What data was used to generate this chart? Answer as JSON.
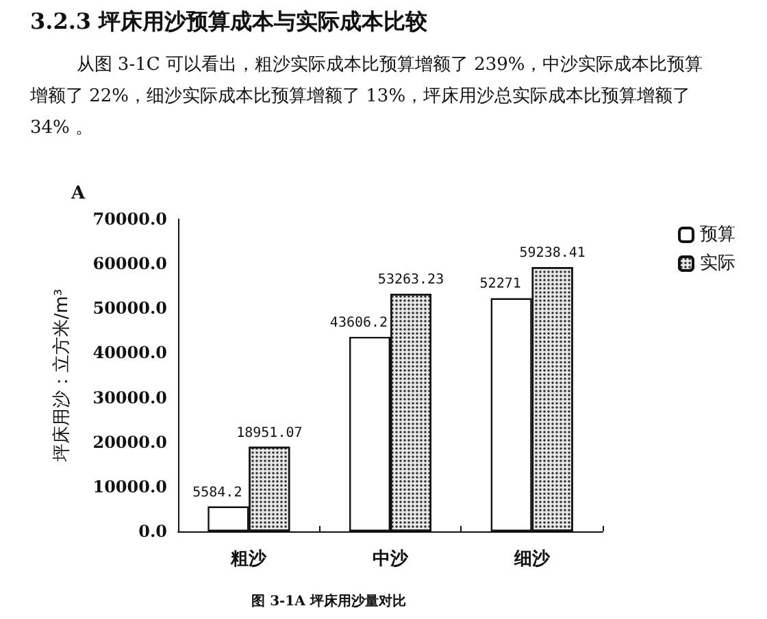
{
  "chart_data": {
    "type": "bar",
    "title": "3.2.3 坪床用沙预算成本与实际成本比较",
    "subtitle": "从图 3-1C 可以看出，粗沙实际成本比预算增额了 239%，中沙实际成本比预算增额了 22%，细沙实际成本比预算增额了 13%，坪床用沙总实际成本比预算增额了 34% 。",
    "annotations": [
      "A",
      "图 3-1A 坪床用沙量对比"
    ],
    "ylabel": "坪床用沙：立方米/m³",
    "categories": [
      "粗沙",
      "中沙",
      "细沙"
    ],
    "series": [
      {
        "name": "预算",
        "color": "#ffffff",
        "values": [
          5584.2,
          43606.2,
          52271
        ]
      },
      {
        "name": "实际",
        "color": "#e8e8e8",
        "values": [
          18951.07,
          53263.23,
          59238.41
        ]
      }
    ],
    "ylim": [
      0,
      70000
    ],
    "yticks": [
      {
        "value": 0,
        "label": "0.0"
      },
      {
        "value": 10000,
        "label": "10000.0"
      },
      {
        "value": 20000,
        "label": "20000.0"
      },
      {
        "value": 30000,
        "label": "30000.0"
      },
      {
        "value": 40000,
        "label": "40000.0"
      },
      {
        "value": 50000,
        "label": "50000.0"
      },
      {
        "value": 60000,
        "label": "60000.0"
      },
      {
        "value": 70000,
        "label": "70000.0"
      }
    ],
    "data_labels": true,
    "grid": false,
    "legend": "top right"
  }
}
